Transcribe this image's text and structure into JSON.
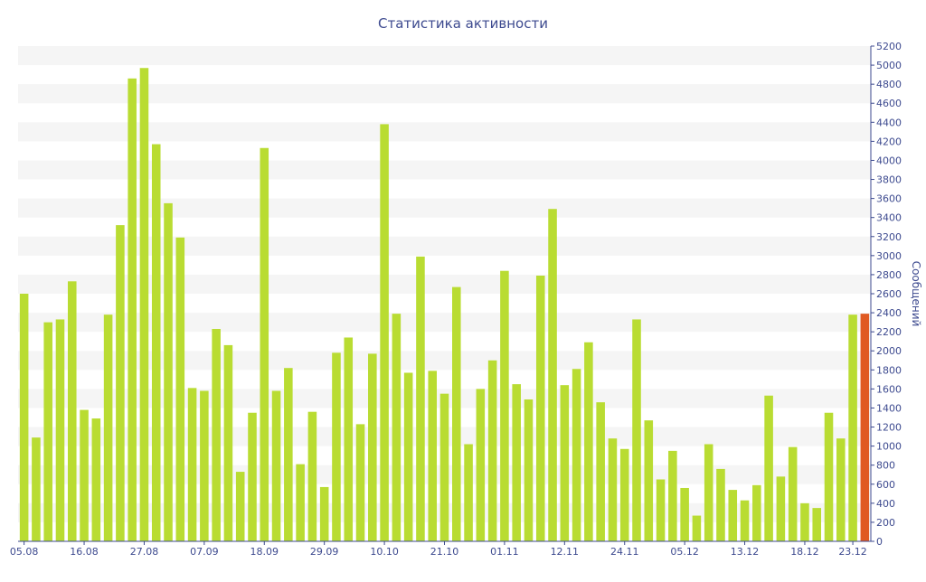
{
  "chart_data": {
    "type": "bar",
    "title": "Статистика активности",
    "xlabel": "",
    "ylabel": "Сообщений",
    "ylim": [
      0,
      5200
    ],
    "y_ticks": [
      0,
      200,
      400,
      600,
      800,
      1000,
      1200,
      1400,
      1600,
      1800,
      2000,
      2200,
      2400,
      2600,
      2800,
      3000,
      3200,
      3400,
      3600,
      3800,
      4000,
      4200,
      4400,
      4600,
      4800,
      5000,
      5200
    ],
    "y_axis_side": "right",
    "grid": "alternating horizontal bands",
    "x_tick_labels": [
      {
        "label": "05.08",
        "index": 0
      },
      {
        "label": "16.08",
        "index": 5
      },
      {
        "label": "27.08",
        "index": 10
      },
      {
        "label": "07.09",
        "index": 15
      },
      {
        "label": "18.09",
        "index": 20
      },
      {
        "label": "29.09",
        "index": 25
      },
      {
        "label": "10.10",
        "index": 30
      },
      {
        "label": "21.10",
        "index": 35
      },
      {
        "label": "01.11",
        "index": 40
      },
      {
        "label": "12.11",
        "index": 45
      },
      {
        "label": "24.11",
        "index": 50
      },
      {
        "label": "05.12",
        "index": 55
      },
      {
        "label": "13.12",
        "index": 60
      },
      {
        "label": "18.12",
        "index": 65
      },
      {
        "label": "23.12",
        "index": 69
      }
    ],
    "values": [
      2600,
      1090,
      2300,
      2330,
      2730,
      1380,
      1290,
      2380,
      3320,
      4860,
      4970,
      4170,
      3550,
      3190,
      1610,
      1580,
      2230,
      2060,
      730,
      1350,
      4130,
      1580,
      1820,
      810,
      1360,
      570,
      1980,
      2140,
      1230,
      1970,
      4380,
      2390,
      1770,
      2990,
      1790,
      1550,
      2670,
      1020,
      1600,
      1900,
      2840,
      1650,
      1490,
      2790,
      3490,
      1640,
      1810,
      2090,
      1460,
      1080,
      970,
      2330,
      1270,
      650,
      950,
      560,
      270,
      1020,
      760,
      540,
      430,
      590,
      1530,
      680,
      990,
      400,
      350,
      1350,
      1080,
      2380,
      2390
    ],
    "bar_color": "#b9dc32",
    "highlight_color": "#e05a22",
    "highlight_index": 70,
    "axis_color": "#3d4a8f"
  }
}
